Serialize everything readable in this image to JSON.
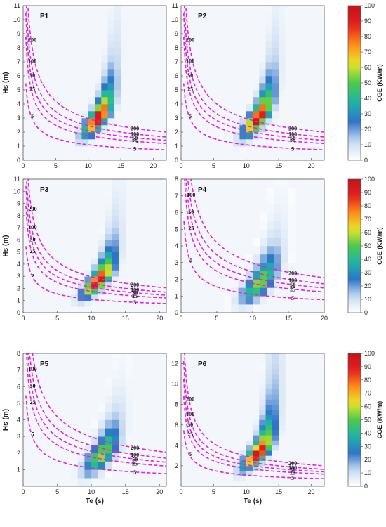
{
  "chart_data": [
    {
      "type": "heatmap",
      "panel_label": "P1",
      "xlabel": "",
      "ylabel": "Hs (m)",
      "xlim": [
        0,
        22
      ],
      "ylim": [
        0,
        11
      ],
      "xticks": [
        0,
        5,
        10,
        15,
        20
      ],
      "yticks": [
        0,
        1,
        2,
        3,
        4,
        5,
        6,
        7,
        8,
        9,
        10,
        11
      ],
      "peak": [
        11.5,
        3.0
      ],
      "spread": [
        1.6,
        0.9
      ],
      "rho": 0.78,
      "peak_value": 100,
      "contours": [
        {
          "label": "5",
          "k": 12
        },
        {
          "label": "25",
          "k": 31
        },
        {
          "label": "50",
          "k": 44
        },
        {
          "label": "100",
          "k": 60
        },
        {
          "label": "200",
          "k": 88
        }
      ]
    },
    {
      "type": "heatmap",
      "panel_label": "P2",
      "xlabel": "",
      "ylabel": "",
      "xlim": [
        0,
        22
      ],
      "ylim": [
        0,
        11
      ],
      "xticks": [
        0,
        5,
        10,
        15,
        20
      ],
      "yticks": [
        0,
        1,
        2,
        3,
        4,
        5,
        6,
        7,
        8,
        9,
        10,
        11
      ],
      "peak": [
        11.8,
        3.0
      ],
      "spread": [
        1.6,
        0.9
      ],
      "rho": 0.78,
      "peak_value": 100,
      "contours": [
        {
          "label": "5",
          "k": 12
        },
        {
          "label": "25",
          "k": 31
        },
        {
          "label": "50",
          "k": 44
        },
        {
          "label": "100",
          "k": 60
        },
        {
          "label": "200",
          "k": 88
        }
      ],
      "colorbar": {
        "label": "CGE (KW/m)",
        "ticks": [
          0,
          10,
          20,
          30,
          40,
          50,
          60,
          70,
          80,
          90,
          100
        ]
      }
    },
    {
      "type": "heatmap",
      "panel_label": "P3",
      "xlabel": "",
      "ylabel": "Hs (m)",
      "xlim": [
        0,
        21
      ],
      "ylim": [
        0,
        11
      ],
      "xticks": [
        0,
        5,
        10,
        15,
        20
      ],
      "yticks": [
        0,
        1,
        2,
        3,
        4,
        5,
        6,
        7,
        8,
        9,
        10,
        11
      ],
      "peak": [
        11.0,
        2.6
      ],
      "spread": [
        1.6,
        0.9
      ],
      "rho": 0.78,
      "peak_value": 100,
      "contours": [
        {
          "label": "5",
          "k": 12
        },
        {
          "label": "25",
          "k": 31
        },
        {
          "label": "50",
          "k": 44
        },
        {
          "label": "100",
          "k": 60
        },
        {
          "label": "200",
          "k": 88
        }
      ]
    },
    {
      "type": "heatmap",
      "panel_label": "P4",
      "xlabel": "",
      "ylabel": "",
      "xlim": [
        0,
        20
      ],
      "ylim": [
        0,
        8
      ],
      "xticks": [
        0,
        5,
        10,
        15,
        20
      ],
      "yticks": [
        0,
        1,
        2,
        3,
        4,
        5,
        6,
        7,
        8
      ],
      "peak": [
        11.0,
        1.8
      ],
      "spread": [
        1.8,
        0.8
      ],
      "rho": 0.7,
      "peak_value": 58,
      "contours": [
        {
          "label": "5",
          "k": 12
        },
        {
          "label": "25",
          "k": 31
        },
        {
          "label": "50",
          "k": 44
        },
        {
          "label": "100",
          "k": 60
        },
        {
          "label": "200",
          "k": 88
        }
      ],
      "colorbar": {
        "label": "CGE (KW/m)",
        "ticks": [
          0,
          10,
          20,
          30,
          40,
          50,
          60,
          70,
          80,
          90,
          100
        ]
      }
    },
    {
      "type": "heatmap",
      "panel_label": "P5",
      "xlabel": "Te (s)",
      "ylabel": "Hs (m)",
      "xlim": [
        0,
        21
      ],
      "ylim": [
        0,
        8
      ],
      "xticks": [
        0,
        5,
        10,
        15,
        20
      ],
      "yticks": [
        1,
        2,
        3,
        4,
        5,
        6,
        7,
        8
      ],
      "peak": [
        11.5,
        1.9
      ],
      "spread": [
        1.8,
        0.8
      ],
      "rho": 0.7,
      "peak_value": 58,
      "contours": [
        {
          "label": "5",
          "k": 12
        },
        {
          "label": "25",
          "k": 31
        },
        {
          "label": "50",
          "k": 44
        },
        {
          "label": "100",
          "k": 60
        },
        {
          "label": "200",
          "k": 88
        }
      ]
    },
    {
      "type": "heatmap",
      "panel_label": "P6",
      "xlabel": "Te (s)",
      "ylabel": "",
      "xlim": [
        0,
        22
      ],
      "ylim": [
        0,
        13
      ],
      "xticks": [
        0,
        5,
        10,
        15,
        20
      ],
      "yticks": [
        2,
        4,
        6,
        8,
        10,
        12
      ],
      "peak": [
        11.8,
        3.2
      ],
      "spread": [
        1.7,
        1.1
      ],
      "rho": 0.78,
      "peak_value": 100,
      "contours": [
        {
          "label": "5",
          "k": 12
        },
        {
          "label": "25",
          "k": 31
        },
        {
          "label": "50",
          "k": 44
        },
        {
          "label": "100",
          "k": 60
        },
        {
          "label": "200",
          "k": 88
        }
      ],
      "colorbar": {
        "label": "CGE (KW/m)",
        "ticks": [
          0,
          10,
          20,
          30,
          40,
          50,
          60,
          70,
          80,
          90,
          100
        ]
      }
    }
  ],
  "colors": {
    "contour": "#e61ee6",
    "axis_bg": "#f3f6fb",
    "colormap": [
      "#ffffff",
      "#c6d9f1",
      "#2f74c8",
      "#1fb4a8",
      "#4cc94c",
      "#e9e629",
      "#ff8b1a",
      "#e4201f",
      "#c3131a"
    ]
  }
}
